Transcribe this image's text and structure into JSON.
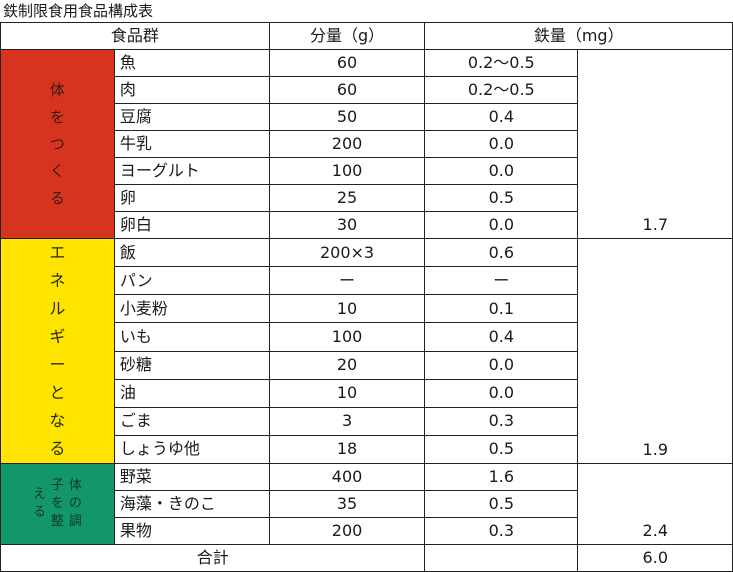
{
  "title": "鉄制限食用食品構成表",
  "headers": {
    "group": "食品群",
    "amount": "分量（g）",
    "iron": "鉄量（mg）"
  },
  "groups": [
    {
      "label_chars": [
        "体",
        "を",
        "つ",
        "く",
        "る"
      ],
      "color": "#d7341f",
      "subtotal": "1.7",
      "rows": [
        {
          "food": "魚",
          "amount": "60",
          "iron": "0.2〜0.5"
        },
        {
          "food": "肉",
          "amount": "60",
          "iron": "0.2〜0.5"
        },
        {
          "food": "豆腐",
          "amount": "50",
          "iron": "0.4"
        },
        {
          "food": "牛乳",
          "amount": "200",
          "iron": "0.0"
        },
        {
          "food": "ヨーグルト",
          "amount": "100",
          "iron": "0.0"
        },
        {
          "food": "卵",
          "amount": "25",
          "iron": "0.5"
        },
        {
          "food": "卵白",
          "amount": "30",
          "iron": "0.0"
        }
      ]
    },
    {
      "label_chars": [
        "エ",
        "ネ",
        "ル",
        "ギ",
        "ー",
        "と",
        "な",
        "る"
      ],
      "color": "#ffe400",
      "subtotal": "1.9",
      "rows": [
        {
          "food": "飯",
          "amount": "200×3",
          "iron": "0.6"
        },
        {
          "food": "パン",
          "amount": "ー",
          "iron": "ー"
        },
        {
          "food": "小麦粉",
          "amount": "10",
          "iron": "0.1"
        },
        {
          "food": "いも",
          "amount": "100",
          "iron": "0.4"
        },
        {
          "food": "砂糖",
          "amount": "20",
          "iron": "0.0"
        },
        {
          "food": "油",
          "amount": "10",
          "iron": "0.0"
        },
        {
          "food": "ごま",
          "amount": "3",
          "iron": "0.3"
        },
        {
          "food": "しょうゆ他",
          "amount": "18",
          "iron": "0.5"
        }
      ]
    },
    {
      "label_columns": [
        [
          "体",
          "の",
          "調"
        ],
        [
          "子",
          "を",
          "整"
        ],
        [
          "え",
          "る"
        ]
      ],
      "color": "#13966a",
      "subtotal": "2.4",
      "rows": [
        {
          "food": "野菜",
          "amount": "400",
          "iron": "1.6"
        },
        {
          "food": "海藻・きのこ",
          "amount": "35",
          "iron": "0.5"
        },
        {
          "food": "果物",
          "amount": "200",
          "iron": "0.3"
        }
      ]
    }
  ],
  "footer": {
    "label": "合計",
    "total": "6.0"
  }
}
